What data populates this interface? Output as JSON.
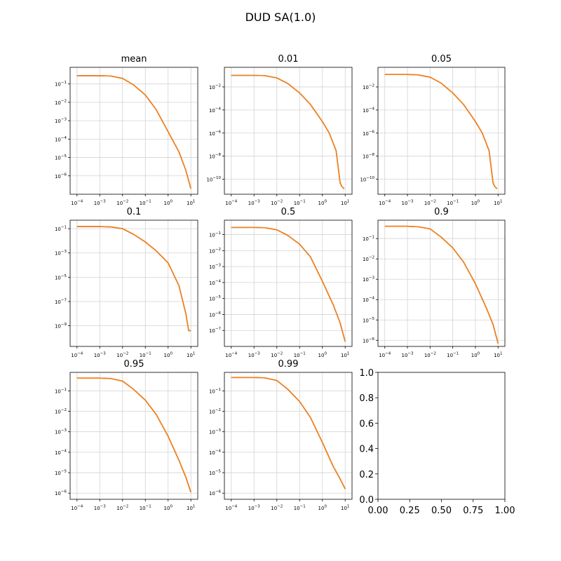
{
  "figure": {
    "title": "DUD SA(1.0)"
  },
  "colors": {
    "line_primary": "#ff7f0e",
    "line_secondary": "#1f77b4",
    "grid": "#d3d3d3",
    "axes": "#000000"
  },
  "x_ticks": [
    "10^-4",
    "10^-3",
    "10^-2",
    "10^-1",
    "10^0",
    "10^1"
  ],
  "chart_data": [
    {
      "type": "line",
      "title": "mean",
      "xscale": "log",
      "yscale": "log",
      "xlim": [
        5e-05,
        20
      ],
      "ylim": [
        1e-07,
        0.8
      ],
      "grid": true,
      "yticks": [
        1e-06,
        1e-05,
        0.0001,
        0.001,
        0.01,
        0.1
      ],
      "yticklabels": [
        "10^-6",
        "10^-5",
        "10^-4",
        "10^-3",
        "10^-2",
        "10^-1"
      ],
      "x": [
        0.0001,
        0.001,
        0.003,
        0.01,
        0.03,
        0.1,
        0.3,
        1,
        3,
        6,
        10
      ],
      "series": [
        {
          "values": [
            0.28,
            0.28,
            0.27,
            0.2,
            0.09,
            0.025,
            0.004,
            0.00025,
            2e-05,
            2e-06,
            2e-07
          ]
        },
        {
          "values": [
            0.28,
            0.28,
            0.27,
            0.2,
            0.09,
            0.025,
            0.004,
            0.00025,
            2e-05,
            2e-06,
            2e-07
          ]
        }
      ]
    },
    {
      "type": "line",
      "title": "0.01",
      "xscale": "log",
      "yscale": "log",
      "xlim": [
        5e-05,
        20
      ],
      "ylim": [
        5e-12,
        0.5
      ],
      "grid": true,
      "yticks": [
        1e-10,
        1e-08,
        1e-06,
        0.0001,
        0.01
      ],
      "yticklabels": [
        "10^-10",
        "10^-8",
        "10^-6",
        "10^-4",
        "10^-2"
      ],
      "x": [
        0.0001,
        0.001,
        0.003,
        0.01,
        0.03,
        0.1,
        0.3,
        1,
        2,
        4,
        6,
        7,
        9
      ],
      "series": [
        {
          "values": [
            0.1,
            0.1,
            0.095,
            0.06,
            0.02,
            0.003,
            0.0003,
            1e-05,
            1e-06,
            3e-08,
            5e-11,
            2.5e-11,
            1.5e-11
          ]
        },
        {
          "values": [
            0.1,
            0.1,
            0.095,
            0.06,
            0.02,
            0.003,
            0.0003,
            1e-05,
            1e-06,
            3e-08,
            5e-11,
            2.5e-11,
            1.5e-11
          ]
        }
      ]
    },
    {
      "type": "line",
      "title": "0.05",
      "xscale": "log",
      "yscale": "log",
      "xlim": [
        5e-05,
        20
      ],
      "ylim": [
        5e-12,
        0.5
      ],
      "grid": true,
      "yticks": [
        1e-10,
        1e-08,
        1e-06,
        0.0001,
        0.01
      ],
      "yticklabels": [
        "10^-10",
        "10^-8",
        "10^-6",
        "10^-4",
        "10^-2"
      ],
      "x": [
        0.0001,
        0.001,
        0.003,
        0.01,
        0.03,
        0.1,
        0.3,
        1,
        2,
        4,
        6,
        7,
        9
      ],
      "series": [
        {
          "values": [
            0.12,
            0.12,
            0.11,
            0.07,
            0.022,
            0.003,
            0.0003,
            1e-05,
            1e-06,
            3e-08,
            5e-11,
            2.5e-11,
            1.5e-11
          ]
        },
        {
          "values": [
            0.12,
            0.12,
            0.11,
            0.07,
            0.022,
            0.003,
            0.0003,
            1e-05,
            1e-06,
            3e-08,
            5e-11,
            2.5e-11,
            1.5e-11
          ]
        }
      ]
    },
    {
      "type": "line",
      "title": "0.1",
      "xscale": "log",
      "yscale": "log",
      "xlim": [
        5e-05,
        20
      ],
      "ylim": [
        2e-11,
        0.5
      ],
      "grid": true,
      "yticks": [
        1e-09,
        1e-07,
        1e-05,
        0.001,
        0.1
      ],
      "yticklabels": [
        "10^-9",
        "10^-7",
        "10^-5",
        "10^-3",
        "10^-1"
      ],
      "x": [
        0.0001,
        0.001,
        0.003,
        0.01,
        0.03,
        0.1,
        0.3,
        1,
        3,
        6,
        8,
        10
      ],
      "series": [
        {
          "values": [
            0.15,
            0.15,
            0.14,
            0.1,
            0.035,
            0.008,
            0.0015,
            0.00015,
            2e-06,
            1e-08,
            4e-10,
            4e-10
          ]
        },
        {
          "values": [
            0.15,
            0.15,
            0.14,
            0.1,
            0.035,
            0.008,
            0.0015,
            0.00015,
            2e-06,
            1e-08,
            4e-10,
            4e-10
          ]
        }
      ]
    },
    {
      "type": "line",
      "title": "0.5",
      "xscale": "log",
      "yscale": "log",
      "xlim": [
        5e-05,
        20
      ],
      "ylim": [
        1e-08,
        0.8
      ],
      "grid": true,
      "yticks": [
        1e-07,
        1e-06,
        1e-05,
        0.0001,
        0.001,
        0.01,
        0.1
      ],
      "yticklabels": [
        "10^-7",
        "10^-6",
        "10^-5",
        "10^-4",
        "10^-3",
        "10^-2",
        "10^-1"
      ],
      "x": [
        0.0001,
        0.001,
        0.003,
        0.01,
        0.03,
        0.1,
        0.3,
        1,
        3,
        6,
        10
      ],
      "series": [
        {
          "values": [
            0.28,
            0.28,
            0.27,
            0.2,
            0.09,
            0.025,
            0.004,
            0.00012,
            4e-06,
            3e-07,
            2e-08
          ]
        },
        {
          "values": [
            0.28,
            0.28,
            0.27,
            0.2,
            0.09,
            0.025,
            0.004,
            0.00012,
            4e-06,
            3e-07,
            2e-08
          ]
        }
      ]
    },
    {
      "type": "line",
      "title": "0.9",
      "xscale": "log",
      "yscale": "log",
      "xlim": [
        5e-05,
        20
      ],
      "ylim": [
        5e-07,
        0.8
      ],
      "grid": true,
      "yticks": [
        1e-06,
        1e-05,
        0.0001,
        0.001,
        0.01,
        0.1
      ],
      "yticklabels": [
        "10^-6",
        "10^-5",
        "10^-4",
        "10^-3",
        "10^-2",
        "10^-1"
      ],
      "x": [
        0.0001,
        0.001,
        0.003,
        0.01,
        0.03,
        0.1,
        0.3,
        1,
        3,
        6,
        10
      ],
      "series": [
        {
          "values": [
            0.4,
            0.4,
            0.38,
            0.3,
            0.12,
            0.035,
            0.007,
            0.0006,
            4e-05,
            6e-06,
            7e-07
          ]
        },
        {
          "values": [
            0.4,
            0.4,
            0.38,
            0.3,
            0.12,
            0.035,
            0.007,
            0.0006,
            4e-05,
            6e-06,
            7e-07
          ]
        }
      ]
    },
    {
      "type": "line",
      "title": "0.95",
      "xscale": "log",
      "yscale": "log",
      "xlim": [
        5e-05,
        20
      ],
      "ylim": [
        5e-07,
        0.8
      ],
      "grid": true,
      "yticks": [
        1e-06,
        1e-05,
        0.0001,
        0.001,
        0.01,
        0.1
      ],
      "yticklabels": [
        "10^-6",
        "10^-5",
        "10^-4",
        "10^-3",
        "10^-2",
        "10^-1"
      ],
      "x": [
        0.0001,
        0.001,
        0.003,
        0.01,
        0.03,
        0.1,
        0.3,
        1,
        3,
        6,
        10
      ],
      "series": [
        {
          "values": [
            0.42,
            0.42,
            0.4,
            0.3,
            0.12,
            0.035,
            0.007,
            0.0006,
            4e-05,
            6e-06,
            1.1e-06
          ]
        },
        {
          "values": [
            0.42,
            0.42,
            0.4,
            0.3,
            0.12,
            0.035,
            0.007,
            0.0006,
            4e-05,
            6e-06,
            1.1e-06
          ]
        }
      ]
    },
    {
      "type": "line",
      "title": "0.99",
      "xscale": "log",
      "yscale": "log",
      "xlim": [
        5e-05,
        20
      ],
      "ylim": [
        5e-07,
        0.8
      ],
      "grid": true,
      "yticks": [
        1e-06,
        1e-05,
        0.0001,
        0.001,
        0.01,
        0.1
      ],
      "yticklabels": [
        "10^-6",
        "10^-5",
        "10^-4",
        "10^-3",
        "10^-2",
        "10^-1"
      ],
      "x": [
        0.0001,
        0.001,
        0.003,
        0.01,
        0.03,
        0.1,
        0.3,
        1,
        3,
        6,
        10
      ],
      "series": [
        {
          "values": [
            0.45,
            0.45,
            0.43,
            0.32,
            0.12,
            0.03,
            0.005,
            0.0003,
            2e-05,
            5e-06,
            1.6e-06
          ]
        },
        {
          "values": [
            0.45,
            0.45,
            0.43,
            0.32,
            0.12,
            0.03,
            0.005,
            0.0003,
            2e-05,
            5e-06,
            1.6e-06
          ]
        }
      ]
    },
    {
      "type": "line",
      "title": "",
      "xscale": "linear",
      "yscale": "linear",
      "xlim": [
        0,
        1
      ],
      "ylim": [
        0,
        1
      ],
      "grid": false,
      "xticklabels": [
        "0.00",
        "0.25",
        "0.50",
        "0.75",
        "1.00"
      ],
      "yticklabels": [
        "0.0",
        "0.2",
        "0.4",
        "0.6",
        "0.8",
        "1.0"
      ],
      "series": []
    }
  ]
}
